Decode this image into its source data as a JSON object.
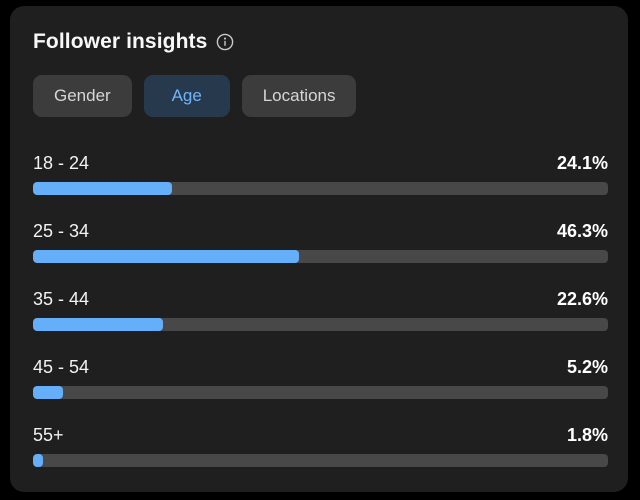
{
  "panel": {
    "title": "Follower insights"
  },
  "tabs": [
    {
      "label": "Gender",
      "active": false
    },
    {
      "label": "Age",
      "active": true
    },
    {
      "label": "Locations",
      "active": false
    }
  ],
  "chart_data": {
    "type": "bar",
    "orientation": "horizontal",
    "title": "Follower insights",
    "subtitle_tab": "Age",
    "categories": [
      "18 - 24",
      "25 - 34",
      "35 - 44",
      "45 - 54",
      "55+"
    ],
    "values": [
      24.1,
      46.3,
      22.6,
      5.2,
      1.8
    ],
    "display_values": [
      "24.1%",
      "46.3%",
      "22.6%",
      "5.2%",
      "1.8%"
    ],
    "unit": "%",
    "xlim": [
      0,
      100
    ],
    "grid": false,
    "legend": false
  },
  "colors": {
    "page_background": "#000000",
    "panel_background": "#1f1f1f",
    "bar_fill": "#64aefa",
    "bar_track": "#484848",
    "tab_background": "#3c3c3c",
    "tab_text": "#d6d6d6",
    "active_tab_background": "#273a4d",
    "active_tab_text": "#72b3f7",
    "text": "#ffffff"
  }
}
